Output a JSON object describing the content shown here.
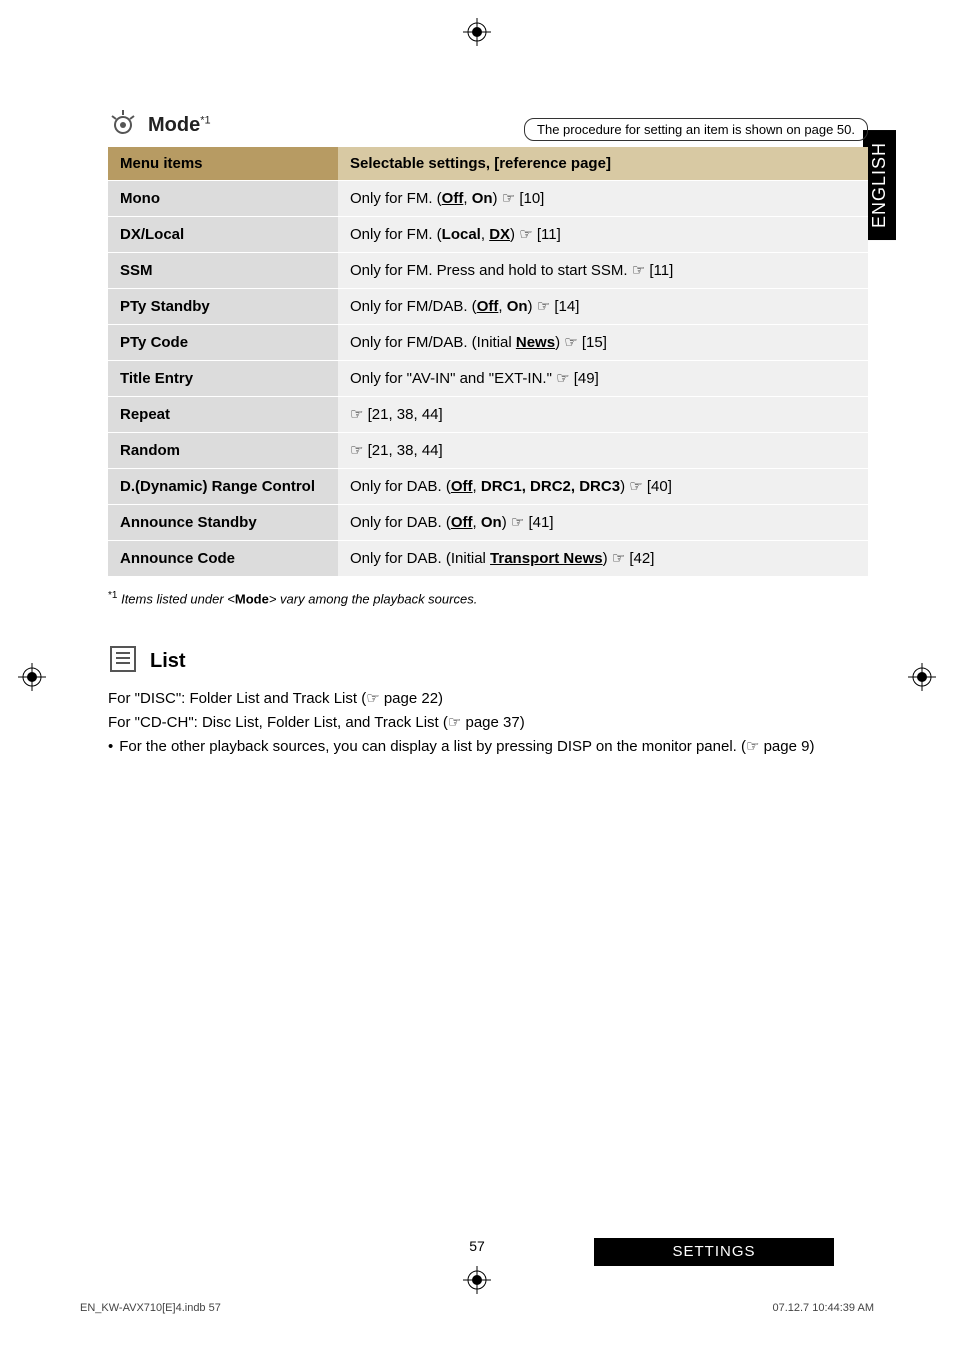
{
  "colors": {
    "header_left_bg": "#b79b63",
    "header_right_bg": "#d8c9a3",
    "row_left_bg": "#dcdcdc",
    "row_right_bg": "#f0f0f0",
    "side_tab_bg": "#000000",
    "side_tab_fg": "#ffffff",
    "settings_bg": "#000000",
    "settings_fg": "#ffffff"
  },
  "mode": {
    "title": "Mode",
    "title_sup": "*1",
    "procedure_note": "The procedure for setting an item is shown on page 50."
  },
  "table": {
    "head_left": "Menu items",
    "head_right": "Selectable settings, [reference page]",
    "rows": [
      {
        "item": "Mono",
        "setting": "Only for FM. (<span class='b u'>Off</span>, <span class='b'>On</span>) <span class='ptr'>☞</span> [10]"
      },
      {
        "item": "DX/Local",
        "setting": "Only for FM. (<span class='b'>Local</span>, <span class='b u'>DX</span>) <span class='ptr'>☞</span> [11]"
      },
      {
        "item": "SSM",
        "setting": "Only for FM. Press and hold to start SSM. <span class='ptr'>☞</span> [11]"
      },
      {
        "item": "PTy Standby",
        "setting": "Only for FM/DAB. (<span class='b u'>Off</span>, <span class='b'>On</span>) <span class='ptr'>☞</span> [14]"
      },
      {
        "item": "PTy Code",
        "setting": "Only for FM/DAB. (Initial <span class='b u'>News</span>) <span class='ptr'>☞</span> [15]"
      },
      {
        "item": "Title Entry",
        "setting": "Only for \"AV-IN\" and \"EXT-IN.\" <span class='ptr'>☞</span> [49]"
      },
      {
        "item": "Repeat",
        "setting": "<span class='ptr'>☞</span> [21, 38, 44]"
      },
      {
        "item": "Random",
        "setting": "<span class='ptr'>☞</span> [21, 38, 44]"
      },
      {
        "item": "D.(Dynamic) Range Control",
        "setting": "Only for DAB. (<span class='b u'>Off</span>, <span class='b'>DRC1, DRC2, DRC3</span>) <span class='ptr'>☞</span> [40]"
      },
      {
        "item": "Announce Standby",
        "setting": "Only for DAB. (<span class='b u'>Off</span>, <span class='b'>On</span>) <span class='ptr'>☞</span> [41]"
      },
      {
        "item": "Announce Code",
        "setting": "Only for DAB. (Initial <span class='b u'>Transport News</span>) <span class='ptr'>☞</span> [42]"
      }
    ]
  },
  "footnote": {
    "sup": "*1",
    "text_prefix": "Items listed under <",
    "text_bold": "Mode",
    "text_suffix": "> vary among the playback sources."
  },
  "list": {
    "title": "List",
    "line1": "For \"DISC\": Folder List and Track List (☞ page 22)",
    "line2": "For \"CD-CH\": Disc List, Folder List, and Track List (☞ page 37)",
    "bullet": "For the other playback sources, you can display a list by pressing DISP on the monitor panel. (☞ page 9)"
  },
  "side_tab": "ENGLISH",
  "page_number": "57",
  "settings_label": "SETTINGS",
  "footer": {
    "left": "EN_KW-AVX710[E]4.indb   57",
    "right": "07.12.7   10:44:39 AM"
  }
}
